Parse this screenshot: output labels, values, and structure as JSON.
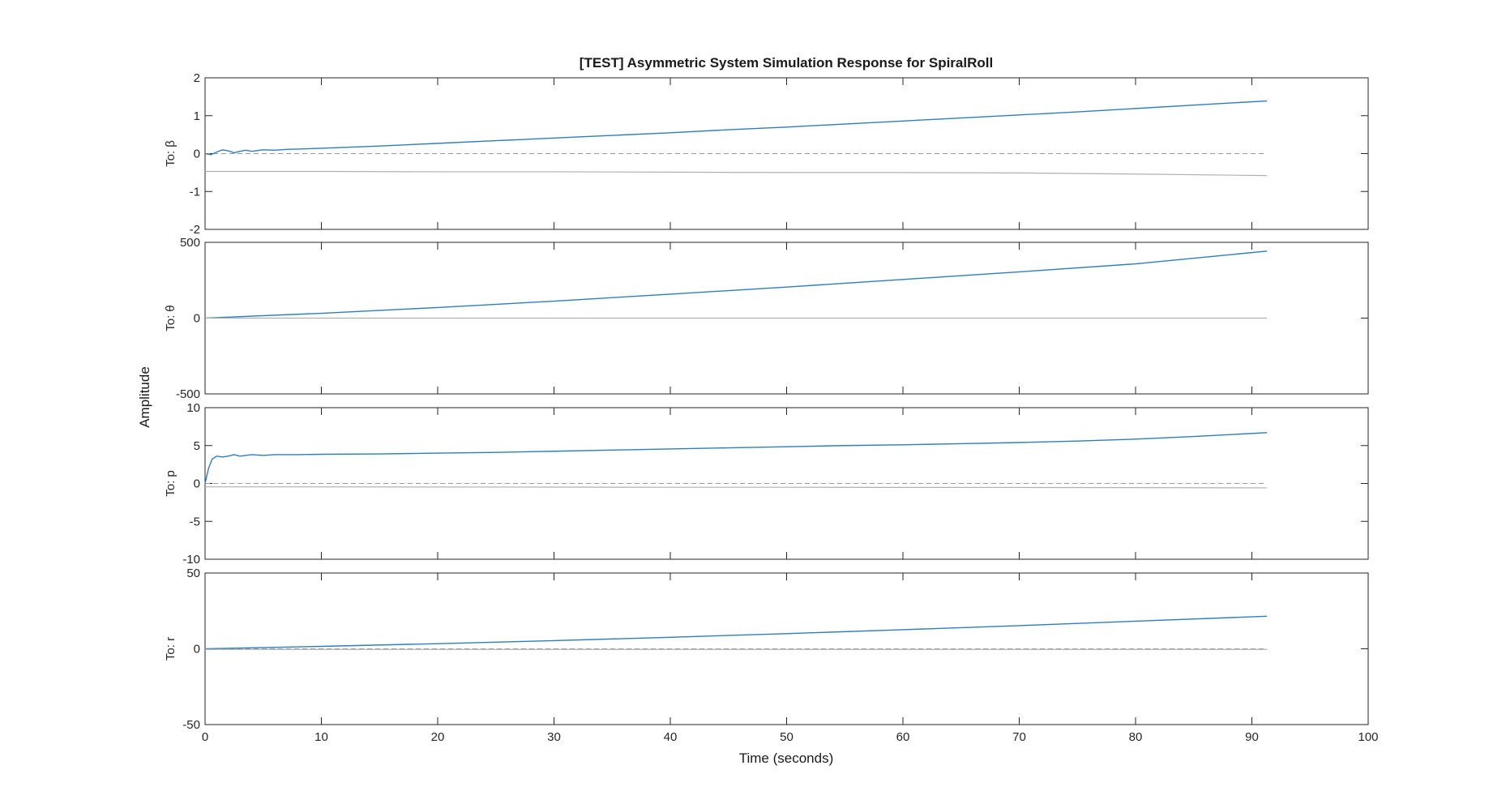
{
  "colors": {
    "response": "#2e7ebf",
    "reference": "#b0b0b0",
    "zero_line": "#9a9a9a",
    "axes": "#262626",
    "background": "#ffffff"
  },
  "chart_data": {
    "type": "line",
    "title": "[TEST] Asymmetric System Simulation Response for SpiralRoll",
    "xlabel": "Time (seconds)",
    "ylabel": "Amplitude",
    "xlim": [
      0,
      100
    ],
    "xticks": [
      0,
      10,
      20,
      30,
      40,
      50,
      60,
      70,
      80,
      90,
      100
    ],
    "grid": false,
    "legend": "none",
    "panels": [
      {
        "label": "To: β",
        "ylim": [
          -2,
          2
        ],
        "yticks": [
          -2,
          -1,
          0,
          1,
          2
        ],
        "zero_line_style": "dashed",
        "series": [
          {
            "role": "response",
            "points": [
              [
                0,
                0
              ],
              [
                0.5,
                -0.03
              ],
              [
                1,
                0.04
              ],
              [
                1.5,
                0.1
              ],
              [
                2,
                0.07
              ],
              [
                2.5,
                0.02
              ],
              [
                3,
                0.06
              ],
              [
                3.5,
                0.09
              ],
              [
                4,
                0.06
              ],
              [
                4.5,
                0.08
              ],
              [
                5,
                0.1
              ],
              [
                6,
                0.09
              ],
              [
                7,
                0.11
              ],
              [
                8,
                0.12
              ],
              [
                10,
                0.14
              ],
              [
                15,
                0.2
              ],
              [
                20,
                0.27
              ],
              [
                25,
                0.34
              ],
              [
                30,
                0.41
              ],
              [
                35,
                0.48
              ],
              [
                40,
                0.55
              ],
              [
                45,
                0.63
              ],
              [
                50,
                0.7
              ],
              [
                55,
                0.78
              ],
              [
                60,
                0.86
              ],
              [
                65,
                0.94
              ],
              [
                70,
                1.02
              ],
              [
                75,
                1.1
              ],
              [
                80,
                1.19
              ],
              [
                85,
                1.28
              ],
              [
                91.3,
                1.39
              ]
            ]
          },
          {
            "role": "reference",
            "points": [
              [
                0,
                -0.47
              ],
              [
                10,
                -0.47
              ],
              [
                20,
                -0.48
              ],
              [
                30,
                -0.48
              ],
              [
                40,
                -0.49
              ],
              [
                50,
                -0.5
              ],
              [
                60,
                -0.5
              ],
              [
                70,
                -0.51
              ],
              [
                80,
                -0.54
              ],
              [
                91.3,
                -0.58
              ]
            ]
          }
        ]
      },
      {
        "label": "To: θ",
        "ylim": [
          -500,
          500
        ],
        "yticks": [
          -500,
          0,
          500
        ],
        "zero_line_style": "solid",
        "series": [
          {
            "role": "response",
            "points": [
              [
                0,
                0
              ],
              [
                10,
                32
              ],
              [
                20,
                70
              ],
              [
                30,
                112
              ],
              [
                40,
                158
              ],
              [
                50,
                205
              ],
              [
                60,
                255
              ],
              [
                70,
                305
              ],
              [
                80,
                358
              ],
              [
                91.3,
                442
              ]
            ]
          },
          {
            "role": "reference",
            "points": [
              [
                0,
                0
              ],
              [
                91.3,
                0
              ]
            ]
          }
        ]
      },
      {
        "label": "To: p",
        "ylim": [
          -10,
          10
        ],
        "yticks": [
          -10,
          -5,
          0,
          5,
          10
        ],
        "zero_line_style": "dashed",
        "series": [
          {
            "role": "response",
            "points": [
              [
                0,
                0
              ],
              [
                0.3,
                2
              ],
              [
                0.6,
                3.2
              ],
              [
                1,
                3.6
              ],
              [
                1.5,
                3.5
              ],
              [
                2,
                3.6
              ],
              [
                2.5,
                3.8
              ],
              [
                3,
                3.6
              ],
              [
                3.5,
                3.7
              ],
              [
                4,
                3.8
              ],
              [
                5,
                3.7
              ],
              [
                6,
                3.8
              ],
              [
                8,
                3.8
              ],
              [
                10,
                3.85
              ],
              [
                15,
                3.9
              ],
              [
                20,
                4.0
              ],
              [
                25,
                4.1
              ],
              [
                30,
                4.25
              ],
              [
                35,
                4.4
              ],
              [
                40,
                4.55
              ],
              [
                45,
                4.7
              ],
              [
                50,
                4.85
              ],
              [
                55,
                5.0
              ],
              [
                60,
                5.1
              ],
              [
                65,
                5.25
              ],
              [
                70,
                5.4
              ],
              [
                75,
                5.6
              ],
              [
                80,
                5.85
              ],
              [
                85,
                6.2
              ],
              [
                91.3,
                6.7
              ]
            ]
          },
          {
            "role": "reference",
            "points": [
              [
                0,
                -0.45
              ],
              [
                10,
                -0.45
              ],
              [
                20,
                -0.47
              ],
              [
                30,
                -0.48
              ],
              [
                40,
                -0.5
              ],
              [
                50,
                -0.5
              ],
              [
                60,
                -0.52
              ],
              [
                70,
                -0.53
              ],
              [
                80,
                -0.55
              ],
              [
                91.3,
                -0.58
              ]
            ]
          }
        ]
      },
      {
        "label": "To: r",
        "ylim": [
          -50,
          50
        ],
        "yticks": [
          -50,
          0,
          50
        ],
        "zero_line_style": "dashed",
        "series": [
          {
            "role": "response",
            "points": [
              [
                0,
                0
              ],
              [
                10,
                1.6
              ],
              [
                20,
                3.4
              ],
              [
                30,
                5.4
              ],
              [
                40,
                7.6
              ],
              [
                50,
                10
              ],
              [
                60,
                12.6
              ],
              [
                70,
                15.3
              ],
              [
                80,
                18.2
              ],
              [
                91.3,
                21.5
              ]
            ]
          },
          {
            "role": "reference",
            "points": [
              [
                0,
                -0.4
              ],
              [
                91.3,
                -0.4
              ]
            ]
          }
        ]
      }
    ]
  }
}
